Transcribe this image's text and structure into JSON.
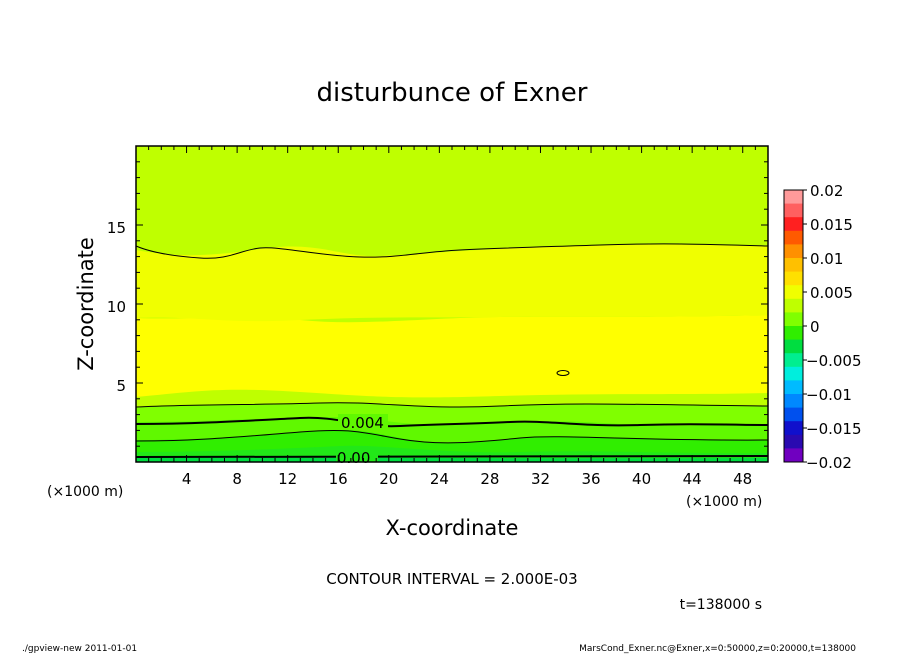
{
  "chart_data": {
    "type": "heatmap",
    "title": "disturbunce of Exner",
    "xlabel": "X-coordinate",
    "ylabel": "Z-coordinate",
    "x_unit": "(×1000 m)",
    "y_unit": "(×1000 m)",
    "xlim": [
      0,
      50
    ],
    "ylim": [
      0,
      20
    ],
    "x_ticks": [
      "4",
      "8",
      "12",
      "16",
      "20",
      "24",
      "28",
      "32",
      "36",
      "40",
      "44",
      "48"
    ],
    "y_ticks": [
      "5",
      "10",
      "15"
    ],
    "contour_interval": "CONTOUR INTERVAL = 2.000E-03",
    "time": "t=138000 s",
    "contour_labels": [
      "0.004",
      "0.00"
    ],
    "colorbar": {
      "labels": [
        "0.02",
        "0.015",
        "0.01",
        "0.005",
        "0",
        "−0.005",
        "−0.01",
        "−0.015",
        "−0.02"
      ],
      "values": [
        0.02,
        0.015,
        0.01,
        0.005,
        0,
        -0.005,
        -0.01,
        -0.015,
        -0.02
      ],
      "colors": [
        "#ff9a9a",
        "#ff6060",
        "#ff2020",
        "#ff5a00",
        "#ff9000",
        "#ffc000",
        "#ffe000",
        "#f0ff00",
        "#bfff00",
        "#80ff00",
        "#30ee00",
        "#00dd40",
        "#00ee90",
        "#00eedd",
        "#00bbff",
        "#0088ff",
        "#0050ee",
        "#1010cc",
        "#2a0ab0",
        "#7000c0"
      ]
    },
    "bands": [
      {
        "z_range": [
          0,
          0.1
        ],
        "value": -0.001,
        "color": "#00dd40"
      },
      {
        "z_range": [
          0.1,
          2.5
        ],
        "value": 0.001,
        "color": "#30ee00"
      },
      {
        "z_range": [
          2.5,
          3.6
        ],
        "value": 0.003,
        "color": "#80ff00"
      },
      {
        "z_range": [
          3.6,
          4.4
        ],
        "value": 0.005,
        "color": "#bfff00"
      },
      {
        "z_range": [
          4.4,
          9.0
        ],
        "value": 0.009,
        "color": "#ffff00"
      },
      {
        "z_range": [
          9.0,
          13.7
        ],
        "value": 0.007,
        "color": "#f0ff00"
      },
      {
        "z_range": [
          13.7,
          20
        ],
        "value": 0.005,
        "color": "#bfff00"
      }
    ]
  },
  "footer": {
    "left": "./gpview-new   2011-01-01",
    "right": "MarsCond_Exner.nc@Exner,x=0:50000,z=0:20000,t=138000"
  }
}
